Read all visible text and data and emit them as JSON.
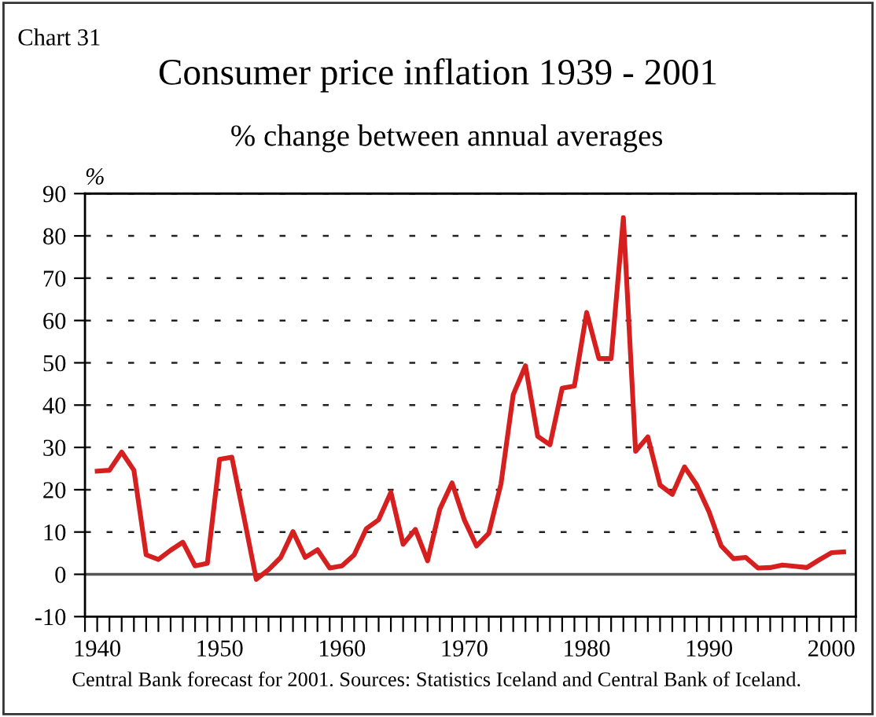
{
  "chart_data": {
    "type": "line",
    "title": "Consumer price inflation 1939 - 2001",
    "subtitle": "% change between annual averages",
    "ylabel": "%",
    "annotations": [
      "Chart 31",
      "Central Bank forecast for 2001. Sources: Statistics Iceland and Central Bank of Iceland."
    ],
    "x": [
      1940,
      1941,
      1942,
      1943,
      1944,
      1945,
      1946,
      1947,
      1948,
      1949,
      1950,
      1951,
      1952,
      1953,
      1954,
      1955,
      1956,
      1957,
      1958,
      1959,
      1960,
      1961,
      1962,
      1963,
      1964,
      1965,
      1966,
      1967,
      1968,
      1969,
      1970,
      1971,
      1972,
      1973,
      1974,
      1975,
      1976,
      1977,
      1978,
      1979,
      1980,
      1981,
      1982,
      1983,
      1984,
      1985,
      1986,
      1987,
      1988,
      1989,
      1990,
      1991,
      1992,
      1993,
      1994,
      1995,
      1996,
      1997,
      1998,
      1999,
      2000,
      2001
    ],
    "series": [
      {
        "color": "#d62020",
        "values": [
          24.4,
          24.6,
          28.9,
          24.6,
          4.6,
          3.5,
          5.7,
          7.6,
          2.0,
          2.6,
          27.2,
          27.7,
          13.4,
          -1.2,
          1.1,
          4.0,
          10.1,
          4.0,
          5.8,
          1.5,
          2.0,
          4.6,
          10.8,
          12.9,
          19.4,
          7.1,
          10.6,
          3.2,
          15.4,
          21.6,
          12.9,
          6.7,
          9.7,
          21.4,
          42.5,
          49.3,
          32.6,
          30.6,
          44.0,
          44.5,
          61.9,
          51.0,
          51.0,
          84.3,
          29.1,
          32.5,
          21.1,
          18.9,
          25.4,
          21.1,
          14.8,
          6.7,
          3.7,
          4.0,
          1.5,
          1.6,
          2.2,
          1.9,
          1.6,
          3.4,
          5.1,
          5.3
        ]
      }
    ],
    "xlim": [
      1939,
      2002
    ],
    "xticks": [
      {
        "value": 1939,
        "label": null
      },
      1940,
      {
        "value": 1941,
        "label": null
      },
      {
        "value": 1942,
        "label": null
      },
      {
        "value": 1943,
        "label": null
      },
      {
        "value": 1944,
        "label": null
      },
      {
        "value": 1945,
        "label": null
      },
      {
        "value": 1946,
        "label": null
      },
      {
        "value": 1947,
        "label": null
      },
      {
        "value": 1948,
        "label": null
      },
      {
        "value": 1949,
        "label": null
      },
      1950,
      {
        "value": 1951,
        "label": null
      },
      {
        "value": 1952,
        "label": null
      },
      {
        "value": 1953,
        "label": null
      },
      {
        "value": 1954,
        "label": null
      },
      {
        "value": 1955,
        "label": null
      },
      {
        "value": 1956,
        "label": null
      },
      {
        "value": 1957,
        "label": null
      },
      {
        "value": 1958,
        "label": null
      },
      {
        "value": 1959,
        "label": null
      },
      1960,
      {
        "value": 1961,
        "label": null
      },
      {
        "value": 1962,
        "label": null
      },
      {
        "value": 1963,
        "label": null
      },
      {
        "value": 1964,
        "label": null
      },
      {
        "value": 1965,
        "label": null
      },
      {
        "value": 1966,
        "label": null
      },
      {
        "value": 1967,
        "label": null
      },
      {
        "value": 1968,
        "label": null
      },
      {
        "value": 1969,
        "label": null
      },
      1970,
      {
        "value": 1971,
        "label": null
      },
      {
        "value": 1972,
        "label": null
      },
      {
        "value": 1973,
        "label": null
      },
      {
        "value": 1974,
        "label": null
      },
      {
        "value": 1975,
        "label": null
      },
      {
        "value": 1976,
        "label": null
      },
      {
        "value": 1977,
        "label": null
      },
      {
        "value": 1978,
        "label": null
      },
      {
        "value": 1979,
        "label": null
      },
      1980,
      {
        "value": 1981,
        "label": null
      },
      {
        "value": 1982,
        "label": null
      },
      {
        "value": 1983,
        "label": null
      },
      {
        "value": 1984,
        "label": null
      },
      {
        "value": 1985,
        "label": null
      },
      {
        "value": 1986,
        "label": null
      },
      {
        "value": 1987,
        "label": null
      },
      {
        "value": 1988,
        "label": null
      },
      {
        "value": 1989,
        "label": null
      },
      1990,
      {
        "value": 1991,
        "label": null
      },
      {
        "value": 1992,
        "label": null
      },
      {
        "value": 1993,
        "label": null
      },
      {
        "value": 1994,
        "label": null
      },
      {
        "value": 1995,
        "label": null
      },
      {
        "value": 1996,
        "label": null
      },
      {
        "value": 1997,
        "label": null
      },
      {
        "value": 1998,
        "label": null
      },
      {
        "value": 1999,
        "label": null
      },
      2000,
      {
        "value": 2001,
        "label": null
      },
      {
        "value": 2002,
        "label": null
      }
    ],
    "ylim": [
      -10,
      90
    ],
    "yticks": [
      -10,
      0,
      10,
      20,
      30,
      40,
      50,
      60,
      70,
      80,
      90
    ],
    "grid": "y",
    "marker": "none",
    "line_style": "solid",
    "ref_lines": [
      {
        "axis": "y",
        "value": 0,
        "color": "#555555",
        "line_style": "solid"
      }
    ]
  }
}
